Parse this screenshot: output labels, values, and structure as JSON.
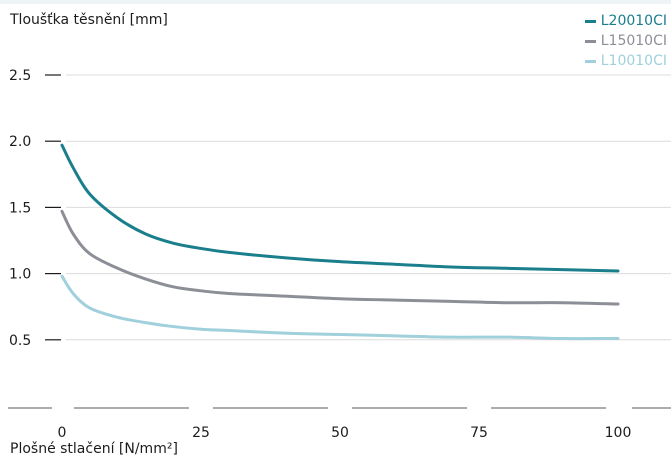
{
  "chart_data": {
    "type": "line",
    "ylabel": "Tloušťka těsnění [mm]",
    "xlabel": "Plošné stlačení [N/mm²]",
    "xlim": [
      0,
      100
    ],
    "ylim": [
      0,
      2.5
    ],
    "x_ticks": [
      0,
      25,
      50,
      75,
      100
    ],
    "x_tick_labels": [
      "0",
      "25",
      "50",
      "75",
      "100"
    ],
    "y_ticks": [
      0.5,
      1.0,
      1.5,
      2.0,
      2.5
    ],
    "y_tick_labels": [
      "0.5",
      "1.0",
      "1.5",
      "2.0",
      "2.5"
    ],
    "grid": "horizontal",
    "legend_position": "top-right",
    "series": [
      {
        "name": "L20010CI",
        "color": "#1a7e8d",
        "x": [
          0,
          2,
          5,
          10,
          15,
          20,
          25,
          30,
          40,
          50,
          60,
          70,
          80,
          90,
          100
        ],
        "y": [
          1.97,
          1.8,
          1.6,
          1.42,
          1.3,
          1.23,
          1.19,
          1.16,
          1.12,
          1.09,
          1.07,
          1.05,
          1.04,
          1.03,
          1.02
        ]
      },
      {
        "name": "L15010CI",
        "color": "#8d8f97",
        "x": [
          0,
          2,
          5,
          10,
          15,
          20,
          25,
          30,
          40,
          50,
          60,
          70,
          80,
          90,
          100
        ],
        "y": [
          1.47,
          1.3,
          1.15,
          1.04,
          0.96,
          0.9,
          0.87,
          0.85,
          0.83,
          0.81,
          0.8,
          0.79,
          0.78,
          0.78,
          0.77
        ]
      },
      {
        "name": "L10010CI",
        "color": "#9fd0db",
        "x": [
          0,
          2,
          5,
          10,
          15,
          20,
          25,
          30,
          40,
          50,
          60,
          70,
          80,
          90,
          100
        ],
        "y": [
          0.98,
          0.85,
          0.74,
          0.67,
          0.63,
          0.6,
          0.58,
          0.57,
          0.55,
          0.54,
          0.53,
          0.52,
          0.52,
          0.51,
          0.51
        ]
      }
    ]
  }
}
